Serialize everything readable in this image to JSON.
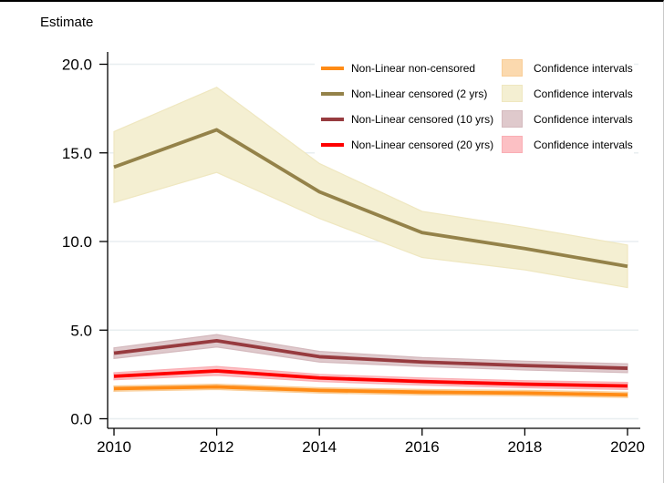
{
  "window": {
    "background": "#ffffff",
    "top_border_color": "#000000",
    "right_border_color": "#c9c9c9"
  },
  "chart_data": {
    "type": "line",
    "title": "Estimate",
    "xlabel": "",
    "ylabel": "",
    "x": [
      2010,
      2012,
      2014,
      2016,
      2018,
      2020
    ],
    "xlim": [
      2010,
      2020
    ],
    "ylim": [
      0,
      20
    ],
    "x_tick_labels": [
      "2010",
      "2012",
      "2014",
      "2016",
      "2018",
      "2020"
    ],
    "y_ticks": [
      0,
      5,
      10,
      15,
      20
    ],
    "y_tick_labels": [
      "0.0",
      "5.0",
      "10.0",
      "15.0",
      "20.0"
    ],
    "grid": true,
    "grid_color": "#e8eef0",
    "axis_color": "#000000",
    "legend_position": "top-right-inside",
    "series": [
      {
        "name": "Non-Linear non-censored",
        "ci_label": "Confidence intervals",
        "color": "#ff8b15",
        "band_fill": "#fbd9ae",
        "band_stroke": "#f9cd97",
        "values": [
          1.7,
          1.8,
          1.6,
          1.5,
          1.45,
          1.35
        ],
        "ci_low": [
          1.55,
          1.65,
          1.45,
          1.35,
          1.3,
          1.2
        ],
        "ci_high": [
          1.85,
          1.95,
          1.75,
          1.65,
          1.6,
          1.5
        ]
      },
      {
        "name": "Non-Linear censored (2 yrs)",
        "ci_label": "Confidence intervals",
        "color": "#948249",
        "band_fill": "#f4efd2",
        "band_stroke": "#efe7c0",
        "values": [
          14.2,
          16.3,
          12.8,
          10.5,
          9.6,
          8.6
        ],
        "ci_low": [
          12.2,
          13.9,
          11.3,
          9.1,
          8.4,
          7.4
        ],
        "ci_high": [
          16.2,
          18.7,
          14.4,
          11.7,
          10.8,
          9.8
        ]
      },
      {
        "name": "Non-Linear censored (10 yrs)",
        "ci_label": "Confidence intervals",
        "color": "#973b3f",
        "band_fill": "#dfc9cc",
        "band_stroke": "#d4b9bd",
        "values": [
          3.7,
          4.4,
          3.5,
          3.2,
          3.0,
          2.85
        ],
        "ci_low": [
          3.4,
          4.05,
          3.2,
          2.95,
          2.75,
          2.6
        ],
        "ci_high": [
          4.0,
          4.75,
          3.8,
          3.45,
          3.25,
          3.1
        ]
      },
      {
        "name": "Non-Linear censored (20 yrs)",
        "ci_label": "Confidence intervals",
        "color": "#ff0000",
        "band_fill": "#fcc0c4",
        "band_stroke": "#faaeb4",
        "values": [
          2.4,
          2.7,
          2.3,
          2.1,
          1.95,
          1.85
        ],
        "ci_low": [
          2.2,
          2.45,
          2.1,
          1.9,
          1.75,
          1.65
        ],
        "ci_high": [
          2.6,
          2.95,
          2.5,
          2.3,
          2.15,
          2.05
        ]
      }
    ]
  }
}
